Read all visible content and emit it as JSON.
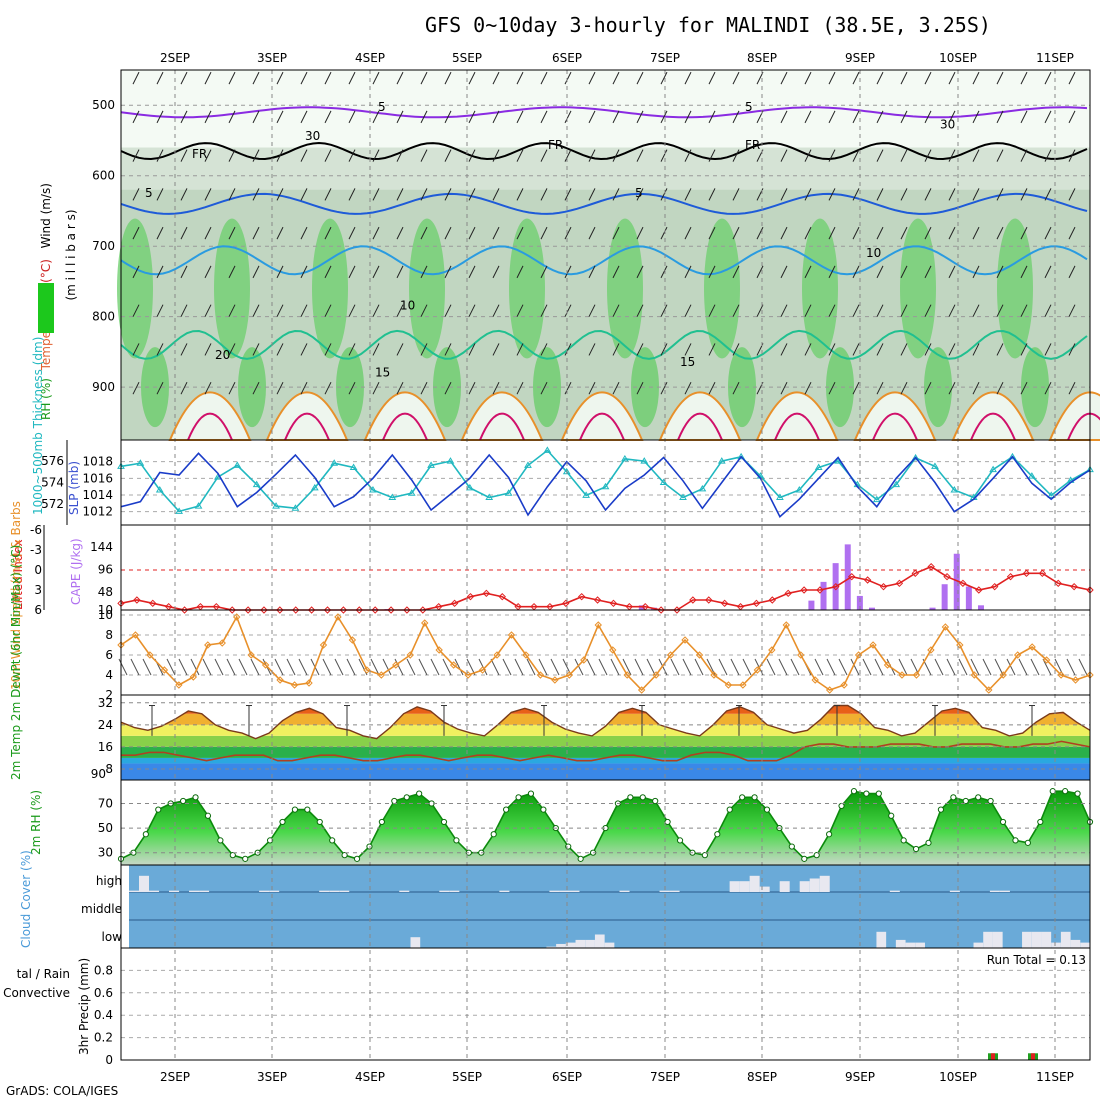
{
  "title": "GFS 0~10day 3-hourly for MALINDI (38.5E, 3.25S)",
  "credit": "GrADS: COLA/IGES",
  "x_axis": {
    "dates": [
      "2SEP",
      "3SEP",
      "4SEP",
      "5SEP",
      "6SEP",
      "7SEP",
      "8SEP",
      "9SEP",
      "10SEP",
      "11SEP"
    ]
  },
  "panels": {
    "upper_air": {
      "ylabel_parts": [
        {
          "text": "RH (%)",
          "color": "#1a9a1a"
        },
        {
          "text": "Temperature",
          "color": "#e06030"
        },
        {
          "text": "(°C)",
          "color": "#cc2020"
        },
        {
          "text": "Wind (m/s)",
          "color": "#000000"
        }
      ],
      "unit_label": "(m i l l i b a r s)",
      "yticks": [
        500,
        600,
        700,
        800,
        900
      ],
      "contour_labels": {
        "purple": "5",
        "freezing": "FR",
        "blue_5": "5",
        "blue_10": "10",
        "teal_15": "15",
        "orange_20": "20",
        "rh_30": "30"
      },
      "colors": {
        "purple": "#8a2be2",
        "blue": "#1e5bd8",
        "lightblue": "#2a9be0",
        "teal": "#20c090",
        "orange": "#e8902a",
        "magenta": "#d0106a",
        "freezing": "#000000"
      }
    },
    "thickness_slp": {
      "ylabel_left": "1000~500mb Thickness (dm)",
      "ylabel_right": "SLP (mb)",
      "left_ticks": [
        572,
        574,
        576
      ],
      "right_ticks": [
        1012,
        1014,
        1016,
        1018
      ],
      "colors": {
        "thickness": "#20b8c0",
        "slp": "#1a3cc8"
      }
    },
    "cape_li": {
      "ylabel_li": "Lifted Index",
      "ylabel_cape": "CAPE (J/kg)",
      "li_ticks": [
        -6,
        -3,
        0,
        3,
        6
      ],
      "cape_ticks": [
        10,
        48,
        96,
        144
      ],
      "colors": {
        "li": "#e02020",
        "cape": "#b070f0"
      }
    },
    "wind10m": {
      "ylabel": "10m Wind Speed (m/s) & Barbs",
      "yticks": [
        2,
        4,
        6,
        8,
        10
      ],
      "colors": {
        "speed": "#e8902a",
        "barb": "#505050"
      }
    },
    "temp2m": {
      "ylabel": "2m Temp 2m DewPt (6hr Min/Max) (°C)",
      "yticks": [
        8,
        16,
        24,
        32
      ],
      "extra_tick": "90"
    },
    "rh2m": {
      "ylabel": "2m RH (%)",
      "yticks": [
        30,
        50,
        70
      ],
      "colors": {
        "line": "#0c8a0c"
      }
    },
    "cloud": {
      "ylabel": "Cloud Cover (%)",
      "levels": [
        "high",
        "middle",
        "low"
      ],
      "colors": {
        "bg": "#6aaad8",
        "bar": "#e8e8f0"
      }
    },
    "precip": {
      "ylabel_left": "tal / Rain",
      "ylabel_left2": "Convective",
      "ylabel": "3hr Precip (mm)",
      "yticks": [
        0,
        0.2,
        0.4,
        0.6,
        0.8
      ],
      "run_total": "Run Total = 0.13",
      "colors": {
        "rain": "#20a020",
        "conv": "#e02020"
      }
    }
  },
  "chart_data": [
    {
      "type": "line",
      "title": "GFS 0~10day 3-hourly for MALINDI (38.5E, 3.25S)",
      "xlabel": "",
      "ylabel": "Temperature (°C) / RH (%) / Wind (m/s) vs pressure (millibars)",
      "x_categories": [
        "2SEP",
        "3SEP",
        "4SEP",
        "5SEP",
        "6SEP",
        "7SEP",
        "8SEP",
        "9SEP",
        "10SEP",
        "11SEP"
      ],
      "y_axis_ticks": [
        500,
        600,
        700,
        800,
        900
      ],
      "y_range": [
        450,
        975
      ],
      "series": [
        {
          "name": "5",
          "level_mb": 510
        },
        {
          "name": "FR",
          "level_mb": 565
        },
        {
          "name": "5",
          "level_mb": 640
        },
        {
          "name": "10",
          "level_mb": 720
        },
        {
          "name": "15",
          "level_mb": 840
        },
        {
          "name": "20",
          "level_mb": 910
        }
      ]
    },
    {
      "type": "line",
      "xlabel": "",
      "series": [
        {
          "name": "1000~500mb Thickness (dm)",
          "values": [
            575.5,
            575.8,
            573.3,
            571.3,
            571.8,
            574.5,
            575.6,
            573.8,
            571.8,
            571.6,
            573.5,
            575.8,
            575.4,
            573.3,
            572.6,
            573.0,
            575.6,
            576.0,
            573.5,
            572.6,
            573.0,
            575.6,
            577.0,
            575.0,
            572.8,
            573.6,
            576.2,
            576.0,
            574.0,
            572.6,
            573.4,
            576.0,
            576.4,
            574.6,
            572.6,
            573.3,
            575.4,
            576.0,
            573.8,
            572.4,
            573.8,
            576.3,
            575.5,
            573.3,
            572.6,
            575.2,
            576.4,
            574.6,
            572.8,
            574.2,
            575.2
          ]
        },
        {
          "name": "SLP (mb)",
          "values": [
            1012.6,
            1013.2,
            1016.7,
            1016.4,
            1019.0,
            1016.6,
            1012.6,
            1014.3,
            1016.5,
            1018.8,
            1016.1,
            1012.6,
            1013.8,
            1016.0,
            1018.8,
            1015.8,
            1012.2,
            1014.1,
            1016.0,
            1018.8,
            1016.1,
            1011.6,
            1015.0,
            1018.0,
            1015.7,
            1012.2,
            1014.8,
            1016.4,
            1018.5,
            1015.7,
            1012.4,
            1015.5,
            1018.6,
            1016.0,
            1011.4,
            1013.5,
            1016.0,
            1018.5,
            1015.0,
            1012.6,
            1016.0,
            1018.5,
            1015.5,
            1012.0,
            1013.5,
            1016.0,
            1018.6,
            1015.4,
            1013.5,
            1015.5,
            1017.0
          ]
        }
      ],
      "y_left_ticks": [
        572,
        574,
        576
      ],
      "y_right_ticks": [
        1012,
        1014,
        1016,
        1018
      ]
    },
    {
      "type": "bar",
      "xlabel": "",
      "series": [
        {
          "name": "CAPE (J/kg)",
          "values": [
            0,
            0,
            0,
            0,
            0,
            0,
            0,
            0,
            0,
            0,
            0,
            0,
            0,
            0,
            0,
            0,
            0,
            0,
            0,
            0,
            0,
            12,
            12,
            0,
            0,
            0,
            0,
            0,
            0,
            0,
            0,
            0,
            0,
            0,
            0,
            0,
            0,
            0,
            0,
            0,
            0,
            0,
            0,
            20,
            15,
            0,
            0,
            0,
            0,
            0,
            0,
            0,
            0,
            0,
            0,
            0,
            0,
            30,
            70,
            110,
            150,
            40,
            15,
            0,
            0,
            0,
            0,
            15,
            65,
            130,
            60,
            20,
            10,
            0,
            0,
            0,
            0,
            0,
            0,
            0,
            0
          ],
          "bar_start": [
            2.0
          ]
        },
        {
          "name": "Lifted Index",
          "values": [
            5.0,
            4.5,
            5.0,
            5.5,
            6.0,
            5.5,
            5.5,
            6.0,
            6.0,
            6.0,
            6.0,
            6.0,
            6.0,
            6.0,
            6.0,
            6.0,
            6.0,
            6.0,
            6.0,
            6.0,
            5.5,
            5.0,
            4.0,
            3.5,
            4.0,
            5.5,
            5.5,
            5.5,
            5.0,
            4.0,
            4.5,
            5.0,
            5.5,
            5.5,
            6.0,
            6.0,
            4.5,
            4.5,
            5.0,
            5.5,
            5.0,
            4.5,
            3.5,
            3.0,
            3.0,
            2.5,
            1.0,
            1.5,
            2.5,
            2.0,
            0.5,
            -0.5,
            1.0,
            2.0,
            3.0,
            2.5,
            1.0,
            0.5,
            0.5,
            2.0,
            2.5,
            3.0
          ]
        }
      ],
      "li_ticks": [
        -6,
        -3,
        0,
        3,
        6
      ],
      "cape_ticks": [
        10,
        48,
        96,
        144
      ]
    },
    {
      "type": "line",
      "xlabel": "",
      "series": [
        {
          "name": "10m Wind Speed",
          "values": [
            7.0,
            8.0,
            6.0,
            4.5,
            3.0,
            3.8,
            7.0,
            7.2,
            9.8,
            6.0,
            5.0,
            3.5,
            3.0,
            3.2,
            7.0,
            9.8,
            7.5,
            4.5,
            4.0,
            5.0,
            6.0,
            9.2,
            6.5,
            5.0,
            4.0,
            4.5,
            6.0,
            8.0,
            6.0,
            4.0,
            3.5,
            4.0,
            5.5,
            9.0,
            6.5,
            4.0,
            2.5,
            4.0,
            6.0,
            7.5,
            6.0,
            4.0,
            3.0,
            3.0,
            4.5,
            6.5,
            9.0,
            6.0,
            3.5,
            2.5,
            3.0,
            6.0,
            7.0,
            5.0,
            4.0,
            4.0,
            6.5,
            8.8,
            7.0,
            4.0,
            2.5,
            4.0,
            6.0,
            6.8,
            5.5,
            4.0,
            3.5,
            4.0
          ]
        }
      ],
      "yticks": [
        2,
        4,
        6,
        8,
        10
      ]
    },
    {
      "type": "area",
      "xlabel": "",
      "series": [
        {
          "name": "2m Temp",
          "values": [
            25,
            23,
            22,
            23.5,
            26,
            29,
            28,
            24,
            22,
            21,
            19,
            21,
            25.5,
            28.5,
            30,
            28,
            23,
            22,
            20,
            19,
            23,
            28,
            30.5,
            29,
            25,
            22.5,
            21,
            20,
            24,
            28.5,
            30,
            28.5,
            25,
            22.5,
            21,
            20,
            23.5,
            28.5,
            30,
            28.5,
            24,
            22.5,
            21,
            20,
            24,
            29,
            30.5,
            28.5,
            24,
            22.5,
            21,
            22,
            26,
            31,
            31,
            28,
            23,
            22,
            20,
            21,
            25,
            29,
            30,
            28.5,
            23,
            22,
            20,
            21,
            25,
            28,
            28.5,
            25,
            22
          ]
        },
        {
          "name": "2m DewPt",
          "values": [
            13,
            13,
            14,
            14,
            13,
            12,
            11,
            12,
            13,
            13,
            13,
            11,
            11,
            12,
            13,
            13,
            12,
            11,
            11,
            12,
            13,
            13,
            12,
            11,
            12,
            13,
            13,
            12,
            11,
            12,
            13,
            12,
            11,
            11,
            12,
            13,
            13,
            12,
            11,
            11,
            13,
            14,
            14,
            13,
            11,
            11,
            11,
            13,
            16,
            17,
            17,
            16,
            16,
            16,
            17,
            17,
            17,
            16,
            16,
            17,
            17,
            17,
            16,
            16,
            17,
            17,
            18,
            17,
            16
          ]
        }
      ],
      "yticks": [
        8,
        16,
        24,
        32
      ]
    },
    {
      "type": "area",
      "xlabel": "",
      "series": [
        {
          "name": "2m RH",
          "values": [
            25,
            30,
            45,
            65,
            70,
            72,
            75,
            60,
            40,
            28,
            25,
            30,
            40,
            55,
            65,
            65,
            55,
            40,
            28,
            25,
            35,
            55,
            72,
            75,
            78,
            70,
            55,
            40,
            30,
            30,
            45,
            65,
            75,
            78,
            65,
            50,
            35,
            25,
            30,
            50,
            70,
            75,
            75,
            72,
            55,
            40,
            30,
            28,
            45,
            65,
            75,
            75,
            65,
            50,
            35,
            25,
            28,
            45,
            68,
            80,
            78,
            78,
            60,
            40,
            33,
            38,
            65,
            75,
            72,
            75,
            72,
            55,
            40,
            38,
            55,
            80,
            80,
            78,
            55
          ]
        }
      ],
      "yticks": [
        30,
        50,
        70
      ]
    },
    {
      "type": "bar",
      "xlabel": "",
      "series": [
        {
          "name": "high",
          "values": [
            5,
            60,
            5,
            0,
            5,
            0,
            5,
            5,
            0,
            0,
            0,
            0,
            0,
            5,
            5,
            0,
            0,
            0,
            0,
            5,
            5,
            5,
            0,
            0,
            0,
            0,
            0,
            5,
            0,
            0,
            0,
            5,
            5,
            0,
            0,
            0,
            0,
            5,
            0,
            0,
            0,
            0,
            5,
            5,
            5,
            0,
            0,
            0,
            0,
            5,
            0,
            0,
            0,
            5,
            5,
            0,
            0,
            0,
            0,
            0,
            40,
            40,
            60,
            20,
            0,
            40,
            0,
            40,
            50,
            60,
            0,
            0,
            0,
            0,
            0,
            0,
            5,
            0,
            0,
            0,
            0,
            0,
            5,
            0,
            0,
            0,
            5,
            5,
            0,
            0,
            0,
            0,
            0,
            0,
            0,
            0
          ]
        },
        {
          "name": "middle",
          "values": [
            0
          ]
        },
        {
          "name": "low",
          "values": [
            0,
            0,
            0,
            0,
            0,
            0,
            0,
            0,
            0,
            0,
            0,
            0,
            0,
            0,
            0,
            0,
            0,
            0,
            0,
            0,
            0,
            0,
            0,
            0,
            0,
            0,
            0,
            0,
            0,
            40,
            0,
            0,
            0,
            0,
            0,
            0,
            0,
            0,
            0,
            0,
            0,
            0,
            0,
            5,
            15,
            20,
            30,
            30,
            50,
            20,
            0,
            0,
            0,
            0,
            0,
            0,
            0,
            0,
            0,
            0,
            0,
            0,
            0,
            0,
            0,
            0,
            0,
            0,
            0,
            0,
            0,
            0,
            0,
            0,
            0,
            0,
            0,
            60,
            0,
            30,
            20,
            20,
            0,
            0,
            0,
            0,
            0,
            20,
            60,
            60,
            0,
            0,
            60,
            60,
            60,
            20,
            60,
            30,
            20
          ]
        }
      ],
      "levels": [
        "high",
        "middle",
        "low"
      ]
    },
    {
      "type": "bar",
      "xlabel": "",
      "title": "Run Total = 0.13",
      "series": [
        {
          "name": "Rain",
          "values": [
            0.06,
            0.06
          ]
        },
        {
          "name": "Convective",
          "values": [
            0.06,
            0.06
          ]
        }
      ],
      "yticks": [
        0,
        0.2,
        0.4,
        0.6,
        0.8
      ],
      "ylim": [
        0,
        1.0
      ]
    }
  ]
}
